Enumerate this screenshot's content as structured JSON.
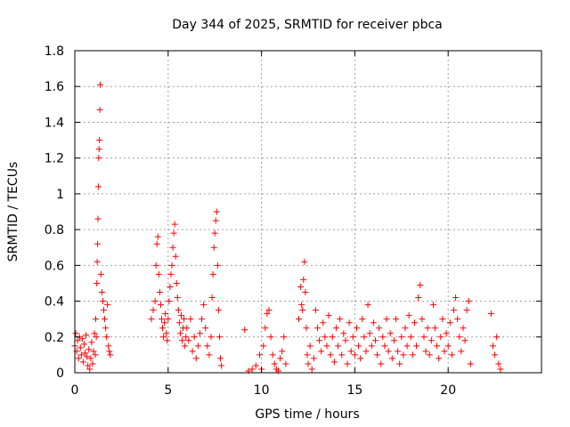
{
  "chart_data": {
    "type": "scatter",
    "title": "Day 344 of 2025, SRMTID for receiver pbca",
    "xlabel": "GPS time / hours",
    "ylabel": "SRMTID / TECUs",
    "xlim": [
      0,
      25
    ],
    "ylim": [
      0,
      1.8
    ],
    "xticks": [
      0,
      5,
      10,
      15,
      20
    ],
    "xtick_labels": [
      "0",
      "5",
      "10",
      "15",
      "20"
    ],
    "yticks": [
      0,
      0.2,
      0.4,
      0.6,
      0.8,
      1,
      1.2,
      1.4,
      1.6,
      1.8
    ],
    "ytick_labels": [
      "0",
      "0.2",
      "0.4",
      "0.6",
      "0.8",
      "1",
      "1.2",
      "1.4",
      "1.6",
      "1.8"
    ],
    "grid": true,
    "marker": "+",
    "color": "#ff0000",
    "series": [
      {
        "name": "SRMTID",
        "points": [
          [
            0.0,
            0.15
          ],
          [
            0.05,
            0.22
          ],
          [
            0.1,
            0.12
          ],
          [
            0.15,
            0.18
          ],
          [
            0.2,
            0.08
          ],
          [
            0.25,
            0.2
          ],
          [
            0.3,
            0.14
          ],
          [
            0.35,
            0.1
          ],
          [
            0.4,
            0.19
          ],
          [
            0.45,
            0.06
          ],
          [
            0.5,
            0.16
          ],
          [
            0.55,
            0.11
          ],
          [
            0.6,
            0.21
          ],
          [
            0.65,
            0.09
          ],
          [
            0.7,
            0.04
          ],
          [
            0.75,
            0.13
          ],
          [
            0.8,
            0.02
          ],
          [
            0.85,
            0.08
          ],
          [
            0.9,
            0.17
          ],
          [
            0.95,
            0.05
          ],
          [
            1.0,
            0.12
          ],
          [
            1.05,
            0.22
          ],
          [
            1.1,
            0.1
          ],
          [
            1.12,
            0.3
          ],
          [
            1.15,
            0.2
          ],
          [
            1.18,
            0.5
          ],
          [
            1.2,
            0.62
          ],
          [
            1.22,
            0.72
          ],
          [
            1.24,
            0.86
          ],
          [
            1.26,
            1.04
          ],
          [
            1.28,
            1.2
          ],
          [
            1.3,
            1.25
          ],
          [
            1.32,
            1.3
          ],
          [
            1.34,
            1.47
          ],
          [
            1.36,
            1.61
          ],
          [
            1.4,
            0.55
          ],
          [
            1.45,
            0.45
          ],
          [
            1.5,
            0.4
          ],
          [
            1.55,
            0.35
          ],
          [
            1.6,
            0.3
          ],
          [
            1.65,
            0.25
          ],
          [
            1.7,
            0.2
          ],
          [
            1.75,
            0.38
          ],
          [
            1.8,
            0.15
          ],
          [
            1.85,
            0.12
          ],
          [
            1.9,
            0.1
          ],
          [
            4.1,
            0.3
          ],
          [
            4.2,
            0.35
          ],
          [
            4.3,
            0.4
          ],
          [
            4.35,
            0.6
          ],
          [
            4.4,
            0.72
          ],
          [
            4.45,
            0.76
          ],
          [
            4.5,
            0.55
          ],
          [
            4.55,
            0.45
          ],
          [
            4.6,
            0.38
          ],
          [
            4.65,
            0.3
          ],
          [
            4.7,
            0.25
          ],
          [
            4.75,
            0.2
          ],
          [
            4.8,
            0.28
          ],
          [
            4.85,
            0.33
          ],
          [
            4.9,
            0.22
          ],
          [
            4.95,
            0.18
          ],
          [
            5.0,
            0.3
          ],
          [
            5.05,
            0.4
          ],
          [
            5.1,
            0.48
          ],
          [
            5.15,
            0.55
          ],
          [
            5.2,
            0.6
          ],
          [
            5.25,
            0.7
          ],
          [
            5.3,
            0.78
          ],
          [
            5.35,
            0.83
          ],
          [
            5.4,
            0.65
          ],
          [
            5.45,
            0.5
          ],
          [
            5.5,
            0.42
          ],
          [
            5.55,
            0.35
          ],
          [
            5.6,
            0.28
          ],
          [
            5.65,
            0.22
          ],
          [
            5.7,
            0.32
          ],
          [
            5.75,
            0.18
          ],
          [
            5.8,
            0.25
          ],
          [
            5.85,
            0.3
          ],
          [
            5.9,
            0.15
          ],
          [
            5.95,
            0.2
          ],
          [
            6.0,
            0.25
          ],
          [
            6.1,
            0.18
          ],
          [
            6.2,
            0.3
          ],
          [
            6.3,
            0.12
          ],
          [
            6.4,
            0.2
          ],
          [
            6.5,
            0.08
          ],
          [
            6.6,
            0.15
          ],
          [
            6.7,
            0.22
          ],
          [
            6.8,
            0.3
          ],
          [
            6.9,
            0.38
          ],
          [
            7.0,
            0.25
          ],
          [
            7.1,
            0.15
          ],
          [
            7.2,
            0.1
          ],
          [
            7.3,
            0.2
          ],
          [
            7.35,
            0.42
          ],
          [
            7.4,
            0.55
          ],
          [
            7.45,
            0.7
          ],
          [
            7.5,
            0.78
          ],
          [
            7.55,
            0.85
          ],
          [
            7.6,
            0.9
          ],
          [
            7.65,
            0.6
          ],
          [
            7.7,
            0.35
          ],
          [
            7.75,
            0.2
          ],
          [
            7.8,
            0.08
          ],
          [
            7.85,
            0.04
          ],
          [
            9.1,
            0.24
          ],
          [
            9.3,
            0.01
          ],
          [
            9.5,
            0.02
          ],
          [
            9.7,
            0.04
          ],
          [
            9.9,
            0.1
          ],
          [
            10.0,
            0.02
          ],
          [
            10.1,
            0.15
          ],
          [
            10.2,
            0.25
          ],
          [
            10.3,
            0.33
          ],
          [
            10.4,
            0.35
          ],
          [
            10.5,
            0.2
          ],
          [
            10.6,
            0.1
          ],
          [
            10.7,
            0.05
          ],
          [
            10.8,
            0.02
          ],
          [
            10.9,
            0.01
          ],
          [
            11.0,
            0.08
          ],
          [
            11.1,
            0.12
          ],
          [
            11.2,
            0.2
          ],
          [
            11.3,
            0.05
          ],
          [
            12.0,
            0.3
          ],
          [
            12.1,
            0.48
          ],
          [
            12.15,
            0.38
          ],
          [
            12.2,
            0.35
          ],
          [
            12.25,
            0.52
          ],
          [
            12.3,
            0.62
          ],
          [
            12.35,
            0.45
          ],
          [
            12.4,
            0.25
          ],
          [
            12.45,
            0.1
          ],
          [
            12.5,
            0.05
          ],
          [
            12.6,
            0.15
          ],
          [
            12.7,
            0.02
          ],
          [
            12.8,
            0.08
          ],
          [
            12.9,
            0.35
          ],
          [
            13.0,
            0.25
          ],
          [
            13.1,
            0.18
          ],
          [
            13.2,
            0.12
          ],
          [
            13.3,
            0.28
          ],
          [
            13.4,
            0.2
          ],
          [
            13.5,
            0.15
          ],
          [
            13.6,
            0.32
          ],
          [
            13.7,
            0.1
          ],
          [
            13.8,
            0.2
          ],
          [
            13.9,
            0.06
          ],
          [
            14.0,
            0.25
          ],
          [
            14.1,
            0.15
          ],
          [
            14.2,
            0.3
          ],
          [
            14.3,
            0.1
          ],
          [
            14.4,
            0.22
          ],
          [
            14.5,
            0.18
          ],
          [
            14.6,
            0.05
          ],
          [
            14.7,
            0.28
          ],
          [
            14.8,
            0.12
          ],
          [
            14.9,
            0.2
          ],
          [
            15.0,
            0.1
          ],
          [
            15.1,
            0.25
          ],
          [
            15.2,
            0.15
          ],
          [
            15.3,
            0.08
          ],
          [
            15.4,
            0.3
          ],
          [
            15.5,
            0.2
          ],
          [
            15.6,
            0.12
          ],
          [
            15.7,
            0.38
          ],
          [
            15.8,
            0.22
          ],
          [
            15.9,
            0.15
          ],
          [
            16.0,
            0.28
          ],
          [
            16.1,
            0.18
          ],
          [
            16.2,
            0.1
          ],
          [
            16.3,
            0.25
          ],
          [
            16.4,
            0.05
          ],
          [
            16.5,
            0.2
          ],
          [
            16.6,
            0.15
          ],
          [
            16.7,
            0.3
          ],
          [
            16.8,
            0.12
          ],
          [
            16.9,
            0.22
          ],
          [
            17.0,
            0.08
          ],
          [
            17.1,
            0.18
          ],
          [
            17.2,
            0.3
          ],
          [
            17.3,
            0.12
          ],
          [
            17.4,
            0.05
          ],
          [
            17.5,
            0.2
          ],
          [
            17.6,
            0.1
          ],
          [
            17.7,
            0.25
          ],
          [
            17.8,
            0.15
          ],
          [
            17.9,
            0.32
          ],
          [
            18.0,
            0.2
          ],
          [
            18.1,
            0.1
          ],
          [
            18.2,
            0.28
          ],
          [
            18.3,
            0.15
          ],
          [
            18.4,
            0.42
          ],
          [
            18.5,
            0.49
          ],
          [
            18.6,
            0.3
          ],
          [
            18.7,
            0.2
          ],
          [
            18.8,
            0.12
          ],
          [
            18.9,
            0.25
          ],
          [
            19.0,
            0.1
          ],
          [
            19.1,
            0.18
          ],
          [
            19.2,
            0.38
          ],
          [
            19.3,
            0.25
          ],
          [
            19.4,
            0.15
          ],
          [
            19.5,
            0.08
          ],
          [
            19.6,
            0.2
          ],
          [
            19.7,
            0.3
          ],
          [
            19.8,
            0.12
          ],
          [
            19.9,
            0.22
          ],
          [
            20.0,
            0.15
          ],
          [
            20.1,
            0.28
          ],
          [
            20.2,
            0.1
          ],
          [
            20.3,
            0.35
          ],
          [
            20.4,
            0.42
          ],
          [
            20.5,
            0.3
          ],
          [
            20.6,
            0.2
          ],
          [
            20.7,
            0.12
          ],
          [
            20.8,
            0.25
          ],
          [
            20.9,
            0.18
          ],
          [
            21.0,
            0.35
          ],
          [
            21.1,
            0.4
          ],
          [
            21.2,
            0.05
          ],
          [
            22.3,
            0.33
          ],
          [
            22.4,
            0.15
          ],
          [
            22.5,
            0.1
          ],
          [
            22.6,
            0.2
          ],
          [
            22.7,
            0.05
          ],
          [
            22.8,
            0.02
          ]
        ]
      }
    ]
  }
}
